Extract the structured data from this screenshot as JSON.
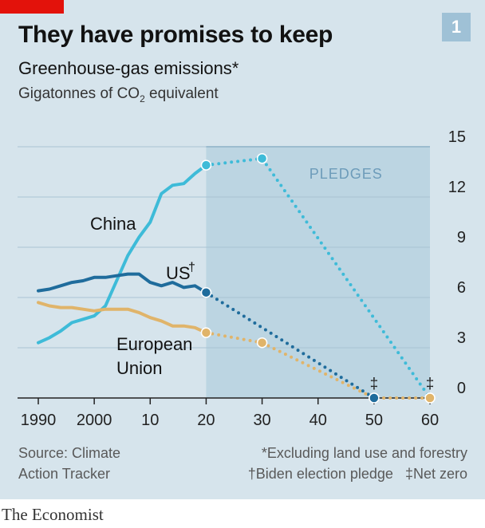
{
  "header": {
    "title": "They have promises to keep",
    "subtitle": "Greenhouse-gas emissions*",
    "units_prefix": "Gigatonnes of CO",
    "units_sub": "2",
    "units_suffix": " equivalent",
    "chart_number": "1"
  },
  "footer": {
    "source_line1": "Source: Climate",
    "source_line2": "Action Tracker",
    "footnote1": "*Excluding land use and forestry",
    "footnote2a": "†Biden election pledge",
    "footnote2b": "‡Net zero",
    "brand": "The Economist"
  },
  "colors": {
    "china": "#3ebbd8",
    "us": "#1f6c9c",
    "eu": "#e0b46a",
    "pledge_band": "#bcd5e2",
    "panel": "#d6e4ec",
    "accent": "#e3120b"
  },
  "chart_data": {
    "type": "line",
    "x_tick_labels": [
      "1990",
      "2000",
      "10",
      "20",
      "30",
      "40",
      "50",
      "60"
    ],
    "x_ticks": [
      1990,
      2000,
      2010,
      2020,
      2030,
      2040,
      2050,
      2060
    ],
    "y_ticks": [
      0,
      3,
      6,
      9,
      12,
      15
    ],
    "xlim": [
      1990,
      2060
    ],
    "ylim": [
      0,
      15
    ],
    "y_axis_side": "right",
    "grid": true,
    "pledge_region": {
      "label": "PLEDGES",
      "x_start": 2020,
      "x_end": 2060
    },
    "series": [
      {
        "name": "China",
        "label": "China",
        "color": "#3ebbd8",
        "historical": [
          [
            1990,
            3.3
          ],
          [
            1992,
            3.6
          ],
          [
            1994,
            4.0
          ],
          [
            1996,
            4.5
          ],
          [
            1998,
            4.7
          ],
          [
            2000,
            4.9
          ],
          [
            2002,
            5.5
          ],
          [
            2004,
            7.0
          ],
          [
            2006,
            8.5
          ],
          [
            2008,
            9.6
          ],
          [
            2010,
            10.5
          ],
          [
            2012,
            12.2
          ],
          [
            2014,
            12.7
          ],
          [
            2016,
            12.8
          ],
          [
            2018,
            13.4
          ],
          [
            2020,
            13.9
          ]
        ],
        "pledge": [
          [
            2020,
            13.9
          ],
          [
            2030,
            14.3
          ],
          [
            2060,
            0
          ]
        ],
        "pledge_marker_years": [
          2020,
          2030,
          2060
        ]
      },
      {
        "name": "US",
        "label": "US",
        "label_mark": "†",
        "color": "#1f6c9c",
        "historical": [
          [
            1990,
            6.4
          ],
          [
            1992,
            6.5
          ],
          [
            1994,
            6.7
          ],
          [
            1996,
            6.9
          ],
          [
            1998,
            7.0
          ],
          [
            2000,
            7.2
          ],
          [
            2002,
            7.2
          ],
          [
            2004,
            7.3
          ],
          [
            2006,
            7.4
          ],
          [
            2008,
            7.4
          ],
          [
            2010,
            6.9
          ],
          [
            2012,
            6.7
          ],
          [
            2014,
            6.9
          ],
          [
            2016,
            6.6
          ],
          [
            2018,
            6.7
          ],
          [
            2020,
            6.3
          ]
        ],
        "pledge": [
          [
            2020,
            6.3
          ],
          [
            2050,
            0
          ]
        ],
        "pledge_marker_years": [
          2020,
          2050
        ]
      },
      {
        "name": "European Union",
        "label_lines": [
          "European",
          "Union"
        ],
        "color": "#e0b46a",
        "historical": [
          [
            1990,
            5.7
          ],
          [
            1992,
            5.5
          ],
          [
            1994,
            5.4
          ],
          [
            1996,
            5.4
          ],
          [
            1998,
            5.3
          ],
          [
            2000,
            5.2
          ],
          [
            2002,
            5.3
          ],
          [
            2004,
            5.3
          ],
          [
            2006,
            5.3
          ],
          [
            2008,
            5.1
          ],
          [
            2010,
            4.8
          ],
          [
            2012,
            4.6
          ],
          [
            2014,
            4.3
          ],
          [
            2016,
            4.3
          ],
          [
            2018,
            4.2
          ],
          [
            2020,
            3.9
          ]
        ],
        "pledge": [
          [
            2020,
            3.9
          ],
          [
            2030,
            3.3
          ],
          [
            2050,
            0
          ],
          [
            2060,
            0
          ]
        ],
        "pledge_marker_years": [
          2020,
          2030,
          2060
        ]
      }
    ],
    "net_zero_markers": [
      {
        "year": 2050,
        "symbol": "‡"
      },
      {
        "year": 2060,
        "symbol": "‡"
      }
    ]
  }
}
